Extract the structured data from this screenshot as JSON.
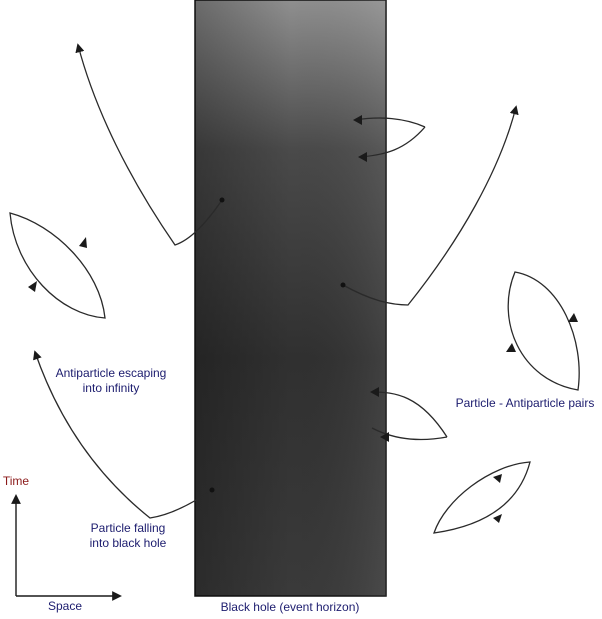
{
  "labels": {
    "antiparticle_escaping": "Antiparticle escaping\ninto infinity",
    "particle_pairs": "Particle - Antiparticle pairs",
    "particle_falling": "Particle falling\ninto black hole",
    "black_hole": "Black hole (event horizon)",
    "time_axis": "Time",
    "space_axis": "Space"
  },
  "colors": {
    "text": "#1c1c6e",
    "axis_text": "#8b1a1a",
    "stroke": "#2a2a2a",
    "hole_dark": "#2b2b2b",
    "hole_light": "#8a8a8a"
  }
}
